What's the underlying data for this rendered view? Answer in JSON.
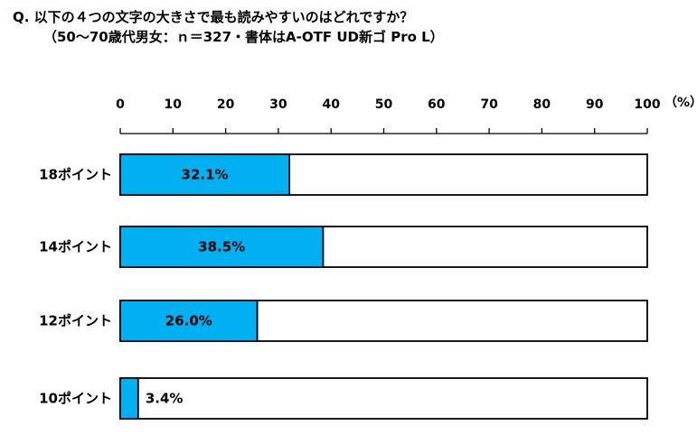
{
  "question": {
    "line1": "Q.  以下の４つの文字の大きさで最も読みやすいのはどれですか？",
    "line2": "（50〜70歳代男女：ｎ＝327・書体はA-OTF UD新ゴ Pro L）"
  },
  "chart_data": {
    "type": "bar",
    "orientation": "horizontal",
    "stacked_remainder_to_100": true,
    "categories": [
      "18ポイント",
      "14ポイント",
      "12ポイント",
      "10ポイント"
    ],
    "values": [
      32.1,
      38.5,
      26.0,
      3.4
    ],
    "value_labels": [
      "32.1%",
      "38.5%",
      "26.0%",
      "3.4%"
    ],
    "xlim": [
      0,
      100
    ],
    "xticks": [
      0,
      10,
      20,
      30,
      40,
      50,
      60,
      70,
      80,
      90,
      100
    ],
    "xunit": "（%）",
    "grid": false,
    "colors": {
      "bar": "#00b0f0",
      "remainder": "#ffffff",
      "outline": "#000000"
    }
  }
}
